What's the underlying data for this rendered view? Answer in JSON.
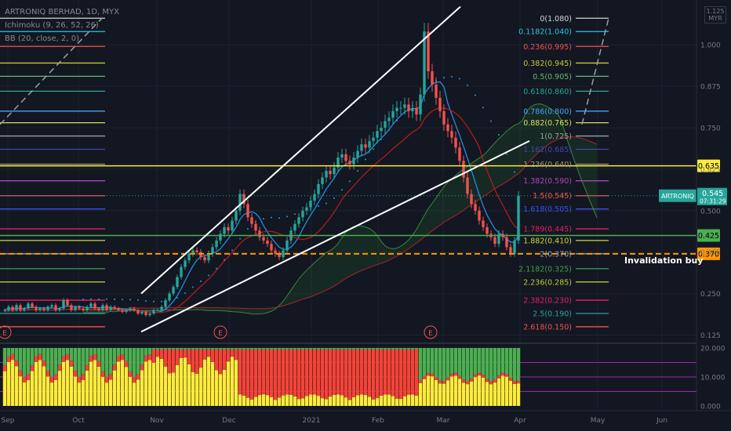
{
  "header": {
    "symbol_line": "ARTRONIQ BERHAD, 1D, MYX",
    "indicator_ichimoku": "Ichimoku (9, 26, 52, 26)",
    "indicator_bb": "BB (20, close, 2, 0)",
    "currency_badge_top": "1.125",
    "currency_badge": "MYR"
  },
  "colors": {
    "background": "#131722",
    "up_candle": "#26a69a",
    "down_candle": "#ef5350",
    "yellow_line": "#ffeb3b",
    "green_line": "#4caf50",
    "orange_dash": "#ff9800",
    "white_line": "#ffffff",
    "kumo_green": "#1b5e20",
    "kumo_red": "#b71c1c"
  },
  "chart_data": [
    {
      "type": "candlestick",
      "title": "",
      "y_axis_ticks": [
        "1.000",
        "0.875",
        "0.750",
        "0.625",
        "0.500",
        "0.375",
        "0.250",
        "0.125"
      ],
      "y_tick_values": [
        1.0,
        0.875,
        0.75,
        0.625,
        0.5,
        0.375,
        0.25,
        0.125
      ],
      "ylim": [
        0.105,
        1.135
      ],
      "x_axis_ticks": [
        "Sep",
        "Oct",
        "Nov",
        "Dec",
        "2021",
        "Feb",
        "Mar",
        "Apr",
        "May",
        "Jun"
      ],
      "price_label": {
        "symbol": "ARTRONIQ",
        "price": "0.545",
        "time": "07:31:29",
        "value": 0.545
      },
      "horizontal_levels": [
        {
          "label": "0.635",
          "value": 0.635,
          "color": "#ffeb3b",
          "style": "solid"
        },
        {
          "label": "0.425",
          "value": 0.425,
          "color": "#4caf50",
          "style": "solid"
        },
        {
          "label": "0.370",
          "value": 0.37,
          "color": "#ff9800",
          "style": "dashed"
        }
      ],
      "annotation": "Invalidation buy",
      "event_markers": [
        "E",
        "E",
        "E"
      ],
      "fibonacci_levels": [
        {
          "label": "0(1.080)",
          "value": 1.08,
          "color": "#d1d4dc"
        },
        {
          "label": "0.1182(1.040)",
          "value": 1.04,
          "color": "#26c6da"
        },
        {
          "label": "0.236(0.995)",
          "value": 0.995,
          "color": "#ef5350"
        },
        {
          "label": "0.382(0.945)",
          "value": 0.945,
          "color": "#c0ca33"
        },
        {
          "label": "0.5(0.905)",
          "value": 0.905,
          "color": "#66bb6a"
        },
        {
          "label": "0.618(0.860)",
          "value": 0.86,
          "color": "#26a69a"
        },
        {
          "label": "0.786(0.800)",
          "value": 0.8,
          "color": "#42a5f5"
        },
        {
          "label": "0.882(0.765)",
          "value": 0.765,
          "color": "#d4e157"
        },
        {
          "label": "1(0.725)",
          "value": 0.725,
          "color": "#9e9e9e"
        },
        {
          "label": "1.162(0.685)",
          "value": 0.685,
          "color": "#3949ab"
        },
        {
          "label": "1.236(0.640)",
          "value": 0.64,
          "color": "#9e9d6b"
        },
        {
          "label": "1.382(0.590)",
          "value": 0.59,
          "color": "#ab47bc"
        },
        {
          "label": "1.5(0.545)",
          "value": 0.545,
          "color": "#ef5350"
        },
        {
          "label": "1.618(0.505)",
          "value": 0.505,
          "color": "#3f51f5"
        },
        {
          "label": "1.789(0.445)",
          "value": 0.445,
          "color": "#e91e63"
        },
        {
          "label": "1.882(0.410)",
          "value": 0.41,
          "color": "#cddc39"
        },
        {
          "label": "2(0.370)",
          "value": 0.37,
          "color": "#90a4ae"
        },
        {
          "label": "2.1182(0.325)",
          "value": 0.325,
          "color": "#43a047"
        },
        {
          "label": "2.236(0.285)",
          "value": 0.285,
          "color": "#c0ca33"
        },
        {
          "label": "2.382(0.230)",
          "value": 0.23,
          "color": "#e91e63"
        },
        {
          "label": "2.5(0.190)",
          "value": 0.19,
          "color": "#26a69a"
        },
        {
          "label": "2.618(0.150)",
          "value": 0.15,
          "color": "#ef5350"
        }
      ],
      "trendlines": [
        {
          "from": {
            "x": "Nov",
            "y": 0.25
          },
          "to": {
            "x": "Mar",
            "y": 1.115
          },
          "color": "#ffffff"
        },
        {
          "from": {
            "x": "Nov",
            "y": 0.135
          },
          "to": {
            "x": "Apr",
            "y": 0.71
          },
          "color": "#ffffff"
        }
      ],
      "closes": [
        0.2,
        0.21,
        0.2,
        0.215,
        0.2,
        0.205,
        0.22,
        0.21,
        0.2,
        0.205,
        0.2,
        0.21,
        0.215,
        0.2,
        0.205,
        0.23,
        0.215,
        0.2,
        0.21,
        0.205,
        0.2,
        0.21,
        0.22,
        0.205,
        0.2,
        0.215,
        0.2,
        0.21,
        0.205,
        0.2,
        0.195,
        0.2,
        0.205,
        0.2,
        0.19,
        0.195,
        0.185,
        0.19,
        0.2,
        0.2,
        0.21,
        0.23,
        0.25,
        0.27,
        0.3,
        0.33,
        0.35,
        0.37,
        0.38,
        0.375,
        0.36,
        0.35,
        0.37,
        0.39,
        0.41,
        0.43,
        0.45,
        0.44,
        0.47,
        0.5,
        0.55,
        0.52,
        0.48,
        0.46,
        0.44,
        0.42,
        0.41,
        0.4,
        0.38,
        0.37,
        0.36,
        0.38,
        0.41,
        0.44,
        0.46,
        0.48,
        0.5,
        0.51,
        0.53,
        0.55,
        0.58,
        0.6,
        0.62,
        0.61,
        0.63,
        0.66,
        0.67,
        0.65,
        0.64,
        0.66,
        0.68,
        0.7,
        0.69,
        0.71,
        0.72,
        0.74,
        0.75,
        0.77,
        0.78,
        0.8,
        0.81,
        0.81,
        0.82,
        0.8,
        0.81,
        0.79,
        0.85,
        1.04,
        0.92,
        0.88,
        0.84,
        0.8,
        0.76,
        0.74,
        0.72,
        0.69,
        0.65,
        0.6,
        0.55,
        0.52,
        0.5,
        0.47,
        0.45,
        0.43,
        0.42,
        0.4,
        0.43,
        0.42,
        0.39,
        0.37,
        0.41,
        0.545
      ],
      "oscillator": {
        "type": "stacked-bar",
        "y_axis_ticks": [
          "20.000",
          "10.000",
          "0.000"
        ],
        "y_tick_values": [
          20,
          10,
          0
        ],
        "ylim": [
          0,
          20
        ],
        "series_names": [],
        "series_colors": [
          "#ffeb3b",
          "#4caf50",
          "#f44336"
        ]
      }
    }
  ]
}
